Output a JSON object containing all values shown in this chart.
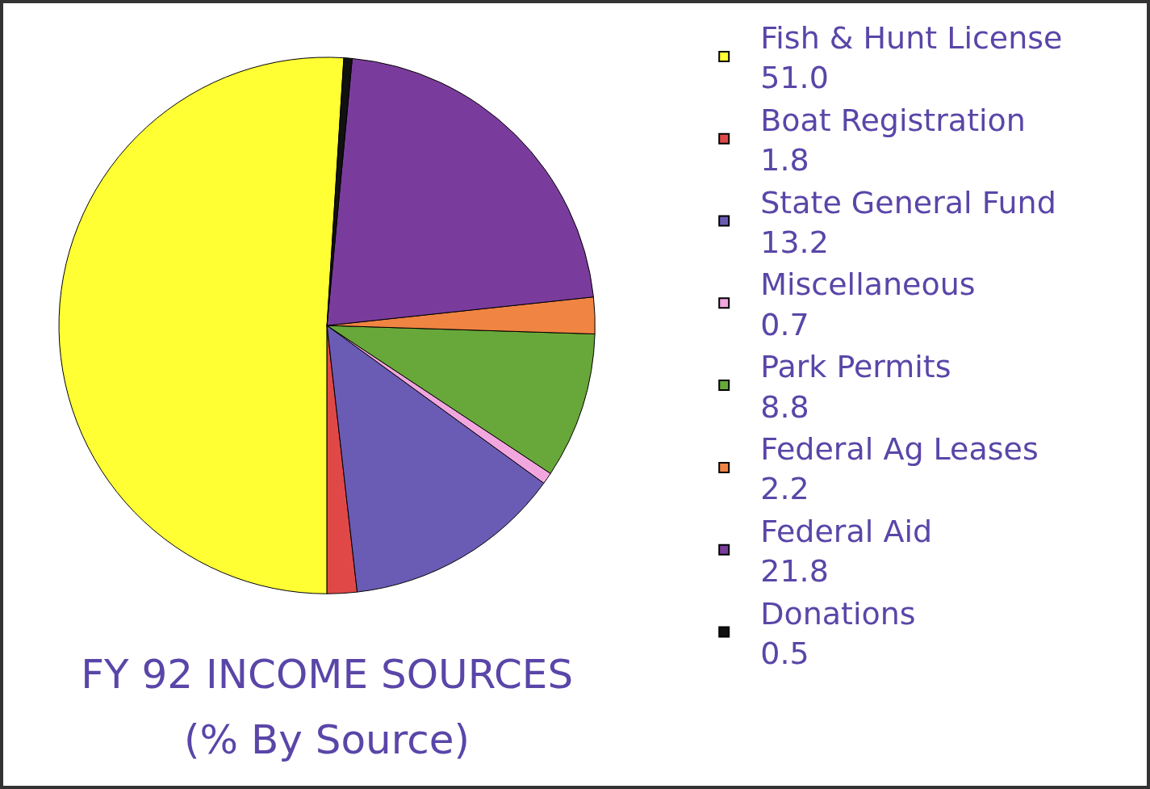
{
  "chart_data": {
    "type": "pie",
    "title": "FY 92 INCOME SOURCES",
    "subtitle": "(% By Source)",
    "categories": [
      "Fish & Hunt License",
      "Boat Registration",
      "State General Fund",
      "Miscellaneous",
      "Park Permits",
      "Federal Ag Leases",
      "Federal Aid",
      "Donations"
    ],
    "values": [
      51.0,
      1.8,
      13.2,
      0.7,
      8.8,
      2.2,
      21.8,
      0.5
    ],
    "value_labels": [
      "51.0",
      "1.8",
      "13.2",
      "0.7",
      "8.8",
      "2.2",
      "21.8",
      "0.5"
    ],
    "colors": [
      "#ffff33",
      "#e04848",
      "#6a5cb4",
      "#f2a6de",
      "#68a83a",
      "#f08442",
      "#7a3c9c",
      "#111111"
    ],
    "legend": "right"
  }
}
